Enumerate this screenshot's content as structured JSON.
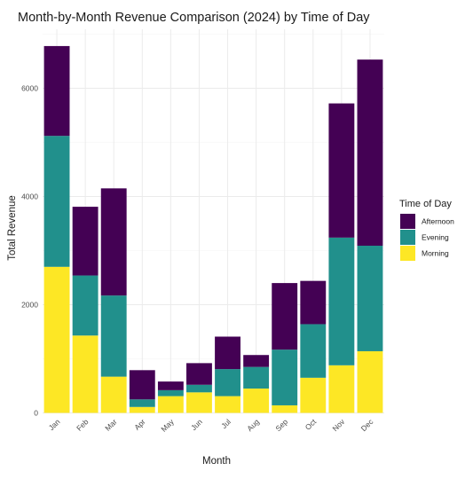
{
  "chart_data": {
    "type": "bar",
    "stacked": true,
    "title": "Month-by-Month Revenue Comparison (2024) by Time of Day",
    "xlabel": "Month",
    "ylabel": "Total Revenue",
    "ylim": [
      0,
      7000
    ],
    "yticks": [
      0,
      2000,
      4000,
      6000
    ],
    "grid": true,
    "legend": {
      "title": "Time of Day",
      "placement": "right",
      "entries": [
        "Afternoon",
        "Evening",
        "Morning"
      ]
    },
    "categories": [
      "Jan",
      "Feb",
      "Mar",
      "Apr",
      "May",
      "Jun",
      "Jul",
      "Aug",
      "Sep",
      "Oct",
      "Nov",
      "Dec"
    ],
    "series": [
      {
        "name": "Morning",
        "color": "#fde725",
        "values": [
          2700,
          1430,
          670,
          110,
          310,
          380,
          310,
          450,
          140,
          650,
          880,
          1140
        ]
      },
      {
        "name": "Evening",
        "color": "#21908c",
        "values": [
          2420,
          1110,
          1500,
          140,
          110,
          140,
          500,
          400,
          1030,
          990,
          2360,
          1950
        ]
      },
      {
        "name": "Afternoon",
        "color": "#440154",
        "values": [
          1660,
          1270,
          1980,
          540,
          160,
          400,
          600,
          220,
          1230,
          800,
          2480,
          3440
        ]
      }
    ]
  }
}
